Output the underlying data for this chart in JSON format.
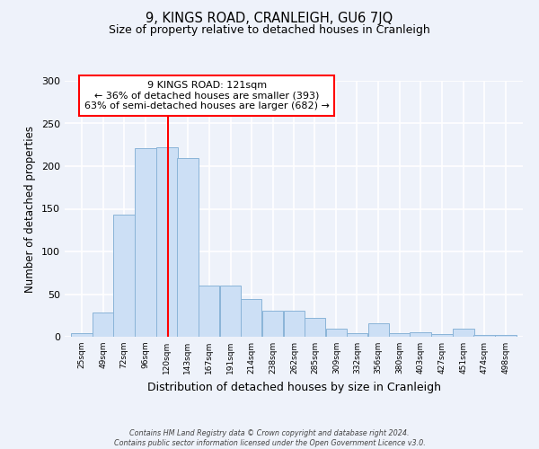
{
  "title": "9, KINGS ROAD, CRANLEIGH, GU6 7JQ",
  "subtitle": "Size of property relative to detached houses in Cranleigh",
  "xlabel": "Distribution of detached houses by size in Cranleigh",
  "ylabel": "Number of detached properties",
  "bar_color": "#ccdff5",
  "bar_edge_color": "#8ab4d8",
  "background_color": "#eef2fa",
  "grid_color": "#ffffff",
  "bins": [
    25,
    49,
    72,
    96,
    120,
    143,
    167,
    191,
    214,
    238,
    262,
    285,
    309,
    332,
    356,
    380,
    403,
    427,
    451,
    474,
    498
  ],
  "values": [
    4,
    28,
    143,
    221,
    222,
    210,
    60,
    60,
    44,
    31,
    31,
    22,
    10,
    4,
    16,
    4,
    5,
    3,
    9,
    2,
    2
  ],
  "red_line_x": 121,
  "ylim": [
    0,
    300
  ],
  "yticks": [
    0,
    50,
    100,
    150,
    200,
    250,
    300
  ],
  "annotation_title": "9 KINGS ROAD: 121sqm",
  "annotation_line1": "← 36% of detached houses are smaller (393)",
  "annotation_line2": "63% of semi-detached houses are larger (682) →",
  "footnote1": "Contains HM Land Registry data © Crown copyright and database right 2024.",
  "footnote2": "Contains public sector information licensed under the Open Government Licence v3.0."
}
